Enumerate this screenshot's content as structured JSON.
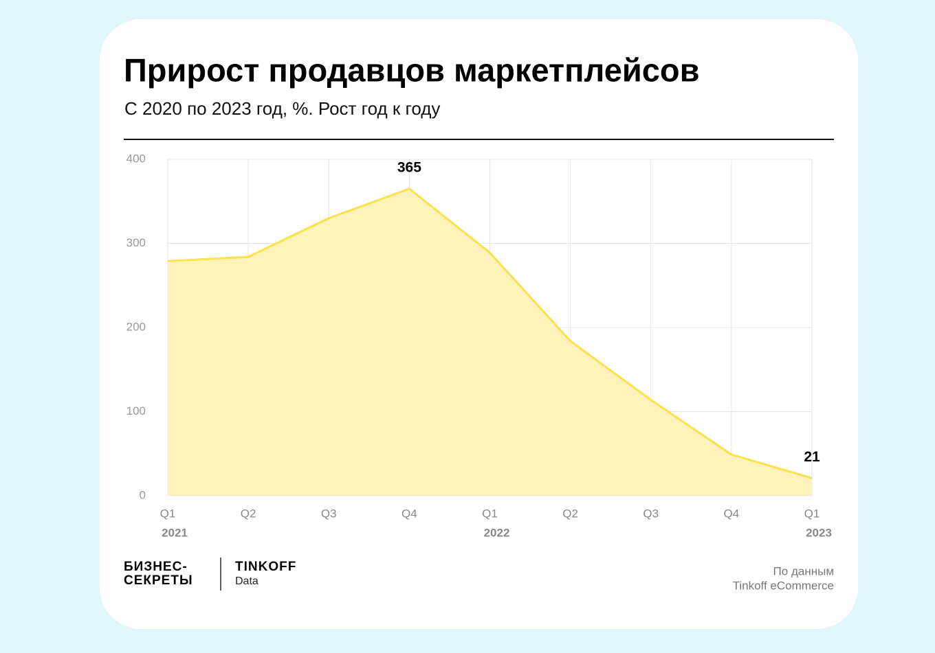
{
  "chart_data": {
    "type": "area",
    "title": "Прирост продавцов маркетплейсов",
    "subtitle": "С 2020 по 2023 год, %. Рост год к году",
    "categories": [
      "Q1",
      "Q2",
      "Q3",
      "Q4",
      "Q1",
      "Q2",
      "Q3",
      "Q4",
      "Q1"
    ],
    "years": [
      "2021",
      null,
      null,
      null,
      "2022",
      null,
      null,
      null,
      "2023"
    ],
    "values": [
      279,
      284,
      330,
      365,
      289,
      184,
      114,
      49,
      21
    ],
    "labeled_points": [
      3,
      8
    ],
    "line_color": "#fbe14b",
    "fill_color": "#fdf2b9",
    "ylim": [
      0,
      400
    ],
    "yticks": [
      0,
      100,
      200,
      300,
      400
    ],
    "grid": true
  },
  "footer": {
    "brand": [
      "БИЗНЕС-",
      "СЕКРЕТЫ"
    ],
    "partner": "TINKOFF",
    "partner_sub": "Data",
    "source": [
      "По данным",
      "Tinkoff eCommerce"
    ]
  }
}
